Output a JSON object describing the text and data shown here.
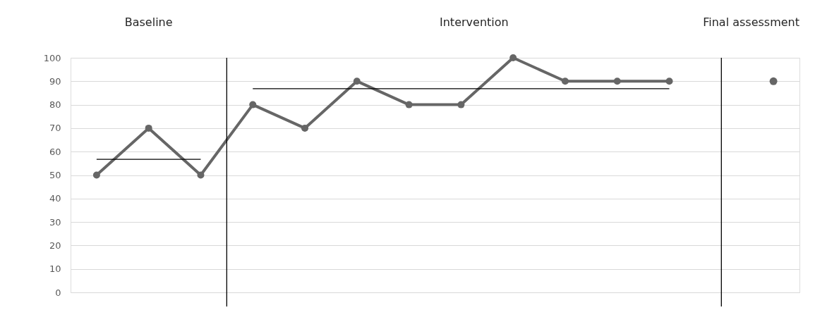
{
  "chart_data": {
    "type": "line",
    "categories": [
      null,
      null,
      null,
      null,
      null,
      null,
      null,
      null,
      null,
      null,
      null,
      null,
      null,
      null
    ],
    "series": [
      {
        "color": "#666666",
        "values": [
          50,
          70,
          50,
          80,
          70,
          90,
          80,
          80,
          100,
          90,
          90,
          90,
          null,
          null
        ]
      },
      {
        "type": "scatter",
        "color": "#666666",
        "values": [
          null,
          null,
          null,
          null,
          null,
          null,
          null,
          null,
          null,
          null,
          null,
          null,
          null,
          90
        ]
      },
      {
        "color": "#000000",
        "values": [
          56.7,
          56.7,
          56.7,
          null,
          null,
          null,
          null,
          null,
          null,
          null,
          null,
          null,
          null,
          null
        ],
        "marker": "none"
      },
      {
        "color": "#000000",
        "values": [
          null,
          null,
          null,
          86.8,
          86.8,
          86.8,
          86.8,
          86.8,
          86.8,
          86.8,
          86.8,
          86.8,
          null,
          null
        ],
        "marker": "none"
      }
    ],
    "marker": "circle",
    "ylim": [
      0,
      100
    ],
    "yticks": [
      0,
      10,
      20,
      30,
      40,
      50,
      60,
      70,
      80,
      90,
      100
    ],
    "tick_labels": "y",
    "grid": "y",
    "annotations": [
      "Baseline",
      "Intervention",
      "Final assessment"
    ]
  }
}
